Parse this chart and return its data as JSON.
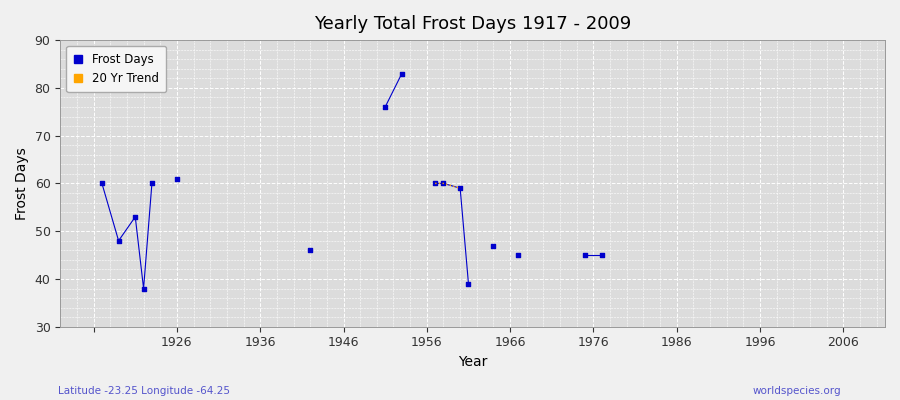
{
  "title": "Yearly Total Frost Days 1917 - 2009",
  "xlabel": "Year",
  "ylabel": "Frost Days",
  "xlim": [
    1912,
    2011
  ],
  "ylim": [
    30,
    90
  ],
  "yticks": [
    30,
    40,
    50,
    60,
    70,
    80,
    90
  ],
  "xticks": [
    1916,
    1926,
    1936,
    1946,
    1956,
    1966,
    1976,
    1986,
    1996,
    2006
  ],
  "xtick_labels": [
    "",
    "1926",
    "1936",
    "1946",
    "1956",
    "1966",
    "1976",
    "1986",
    "1996",
    "2006"
  ],
  "frost_days_years": [
    1917,
    1919,
    1921,
    1922,
    1923,
    1926,
    1942,
    1951,
    1953,
    1957,
    1958,
    1960,
    1961,
    1964,
    1967,
    1975,
    1977
  ],
  "frost_days_values": [
    60,
    48,
    53,
    38,
    60,
    61,
    46,
    76,
    83,
    60,
    60,
    59,
    39,
    47,
    45,
    45,
    45
  ],
  "trend_years": [
    1957,
    1958,
    1960
  ],
  "trend_values": [
    60,
    60,
    59
  ],
  "frost_color": "#0000cc",
  "trend_color": "#ffa500",
  "bg_color": "#f0f0f0",
  "plot_bg_color": "#dcdcdc",
  "grid_color": "#ffffff",
  "legend_frost_label": "Frost Days",
  "legend_trend_label": "20 Yr Trend",
  "watermark_left": "Latitude -23.25 Longitude -64.25",
  "watermark_right": "worldspecies.org",
  "group_threshold": 2
}
